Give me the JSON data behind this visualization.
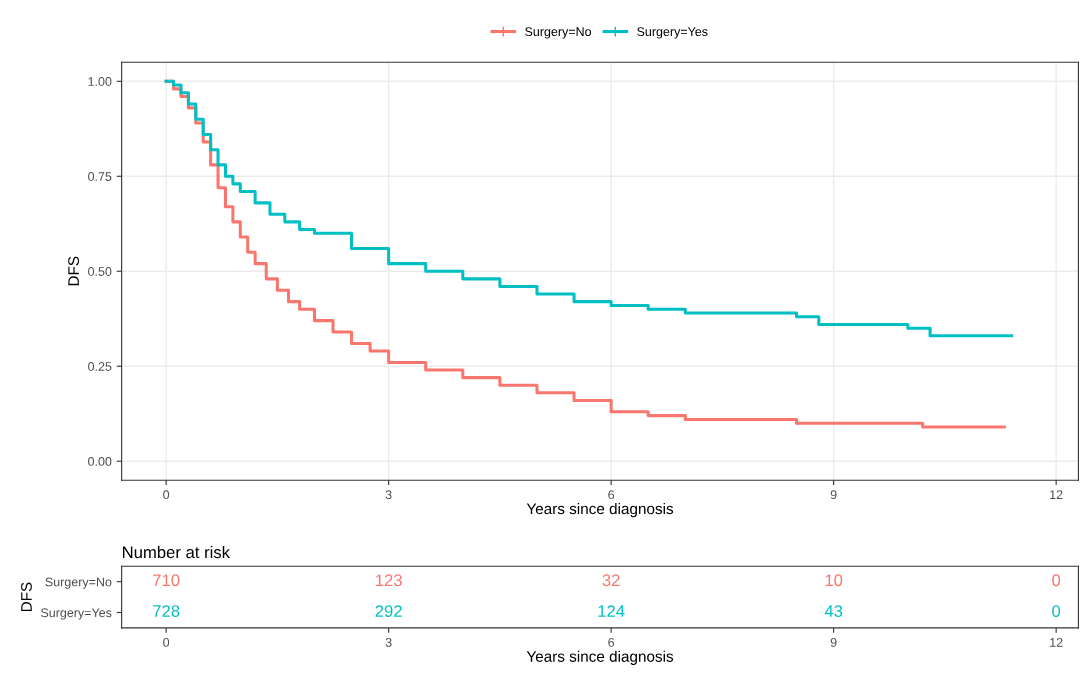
{
  "chart_data": [
    {
      "type": "step",
      "xlabel": "Years since diagnosis",
      "ylabel": "DFS",
      "xlim": [
        -0.6,
        12.3
      ],
      "xticks": [
        0,
        3,
        6,
        9,
        12
      ],
      "ylim": [
        -0.05,
        1.05
      ],
      "yticks": [
        {
          "value": 0,
          "label": "0.00"
        },
        {
          "value": 0.25,
          "label": "0.25"
        },
        {
          "value": 0.5,
          "label": "0.50"
        },
        {
          "value": 0.75,
          "label": "0.75"
        },
        {
          "value": 1,
          "label": "1.00"
        }
      ],
      "grid": true,
      "legend": "top",
      "line_style": "solid",
      "series": [
        {
          "name": "Surgery=No",
          "color": "#f8766d",
          "x": [
            0,
            0.1,
            0.2,
            0.3,
            0.4,
            0.5,
            0.6,
            0.7,
            0.8,
            0.9,
            1.0,
            1.1,
            1.2,
            1.35,
            1.5,
            1.65,
            1.8,
            2.0,
            2.25,
            2.5,
            2.75,
            3.0,
            3.5,
            4.0,
            4.5,
            5.0,
            5.5,
            6.0,
            6.5,
            7.0,
            8.0,
            8.5,
            9.0,
            10.0,
            10.2,
            11.3
          ],
          "values": [
            1.0,
            0.98,
            0.96,
            0.93,
            0.89,
            0.84,
            0.78,
            0.72,
            0.67,
            0.63,
            0.59,
            0.55,
            0.52,
            0.48,
            0.45,
            0.42,
            0.4,
            0.37,
            0.34,
            0.31,
            0.29,
            0.26,
            0.24,
            0.22,
            0.2,
            0.18,
            0.16,
            0.13,
            0.12,
            0.11,
            0.11,
            0.1,
            0.1,
            0.1,
            0.09,
            0.09
          ]
        },
        {
          "name": "Surgery=Yes",
          "color": "#00bfc4",
          "x": [
            0,
            0.1,
            0.2,
            0.3,
            0.4,
            0.5,
            0.6,
            0.7,
            0.8,
            0.9,
            1.0,
            1.2,
            1.4,
            1.6,
            1.8,
            2.0,
            2.5,
            3.0,
            3.5,
            4.0,
            4.5,
            5.0,
            5.5,
            6.0,
            6.5,
            7.0,
            7.5,
            8.0,
            8.5,
            8.8,
            9.5,
            10.0,
            10.3,
            11.4
          ],
          "values": [
            1.0,
            0.99,
            0.97,
            0.94,
            0.9,
            0.86,
            0.82,
            0.78,
            0.75,
            0.73,
            0.71,
            0.68,
            0.65,
            0.63,
            0.61,
            0.6,
            0.56,
            0.52,
            0.5,
            0.48,
            0.46,
            0.44,
            0.42,
            0.41,
            0.4,
            0.39,
            0.39,
            0.39,
            0.38,
            0.36,
            0.36,
            0.35,
            0.33,
            0.33
          ]
        }
      ]
    },
    {
      "type": "heatmap",
      "title": "Number at risk",
      "xlabel": "Years since diagnosis",
      "ylabel": "DFS",
      "categories": [
        "0",
        "3",
        "6",
        "9",
        "12"
      ],
      "y_categories": [
        "Surgery=No",
        "Surgery=Yes"
      ],
      "colors": [
        "#f8766d",
        "#00bfc4"
      ],
      "data_labels": true,
      "cells": [
        [
          710,
          123,
          32,
          10,
          0
        ],
        [
          728,
          292,
          124,
          43,
          0
        ]
      ]
    }
  ]
}
